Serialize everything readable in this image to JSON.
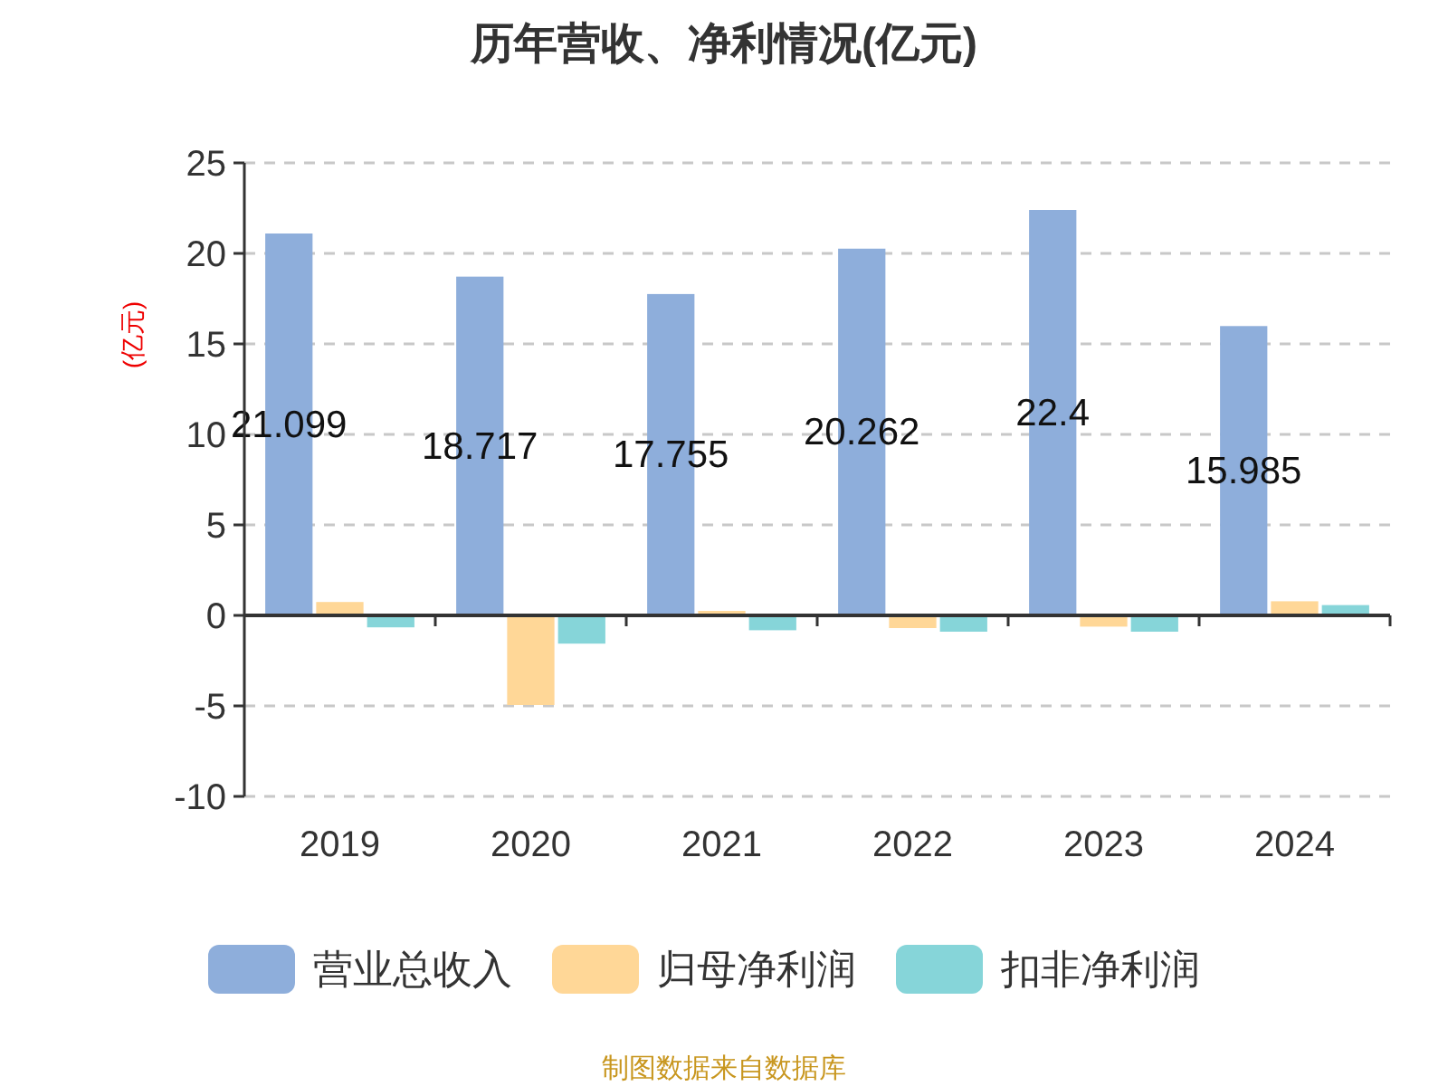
{
  "chart_data": {
    "type": "bar",
    "title": "历年营收、净利情况(亿元)",
    "ylabel": "(亿元)",
    "categories": [
      "2019",
      "2020",
      "2021",
      "2022",
      "2023",
      "2024"
    ],
    "series": [
      {
        "name": "营业总收入",
        "color": "#8eaedb",
        "values": [
          21.099,
          18.717,
          17.755,
          20.262,
          22.4,
          15.985
        ],
        "value_labels": [
          "21.099",
          "18.717",
          "17.755",
          "20.262",
          "22.4",
          "15.985"
        ]
      },
      {
        "name": "归母净利润",
        "color": "#ffd797",
        "values": [
          0.74,
          -4.95,
          0.25,
          -0.7,
          -0.62,
          0.78
        ]
      },
      {
        "name": "扣非净利润",
        "color": "#86d5d9",
        "values": [
          -0.66,
          -1.56,
          -0.82,
          -0.9,
          -0.9,
          0.57
        ]
      }
    ],
    "ylim": [
      -10,
      25
    ],
    "yticks": [
      -10,
      -5,
      0,
      5,
      10,
      15,
      20,
      25
    ],
    "grid": "y",
    "legend": "bottom",
    "annotations": [
      "制图数据来自数据库"
    ]
  }
}
